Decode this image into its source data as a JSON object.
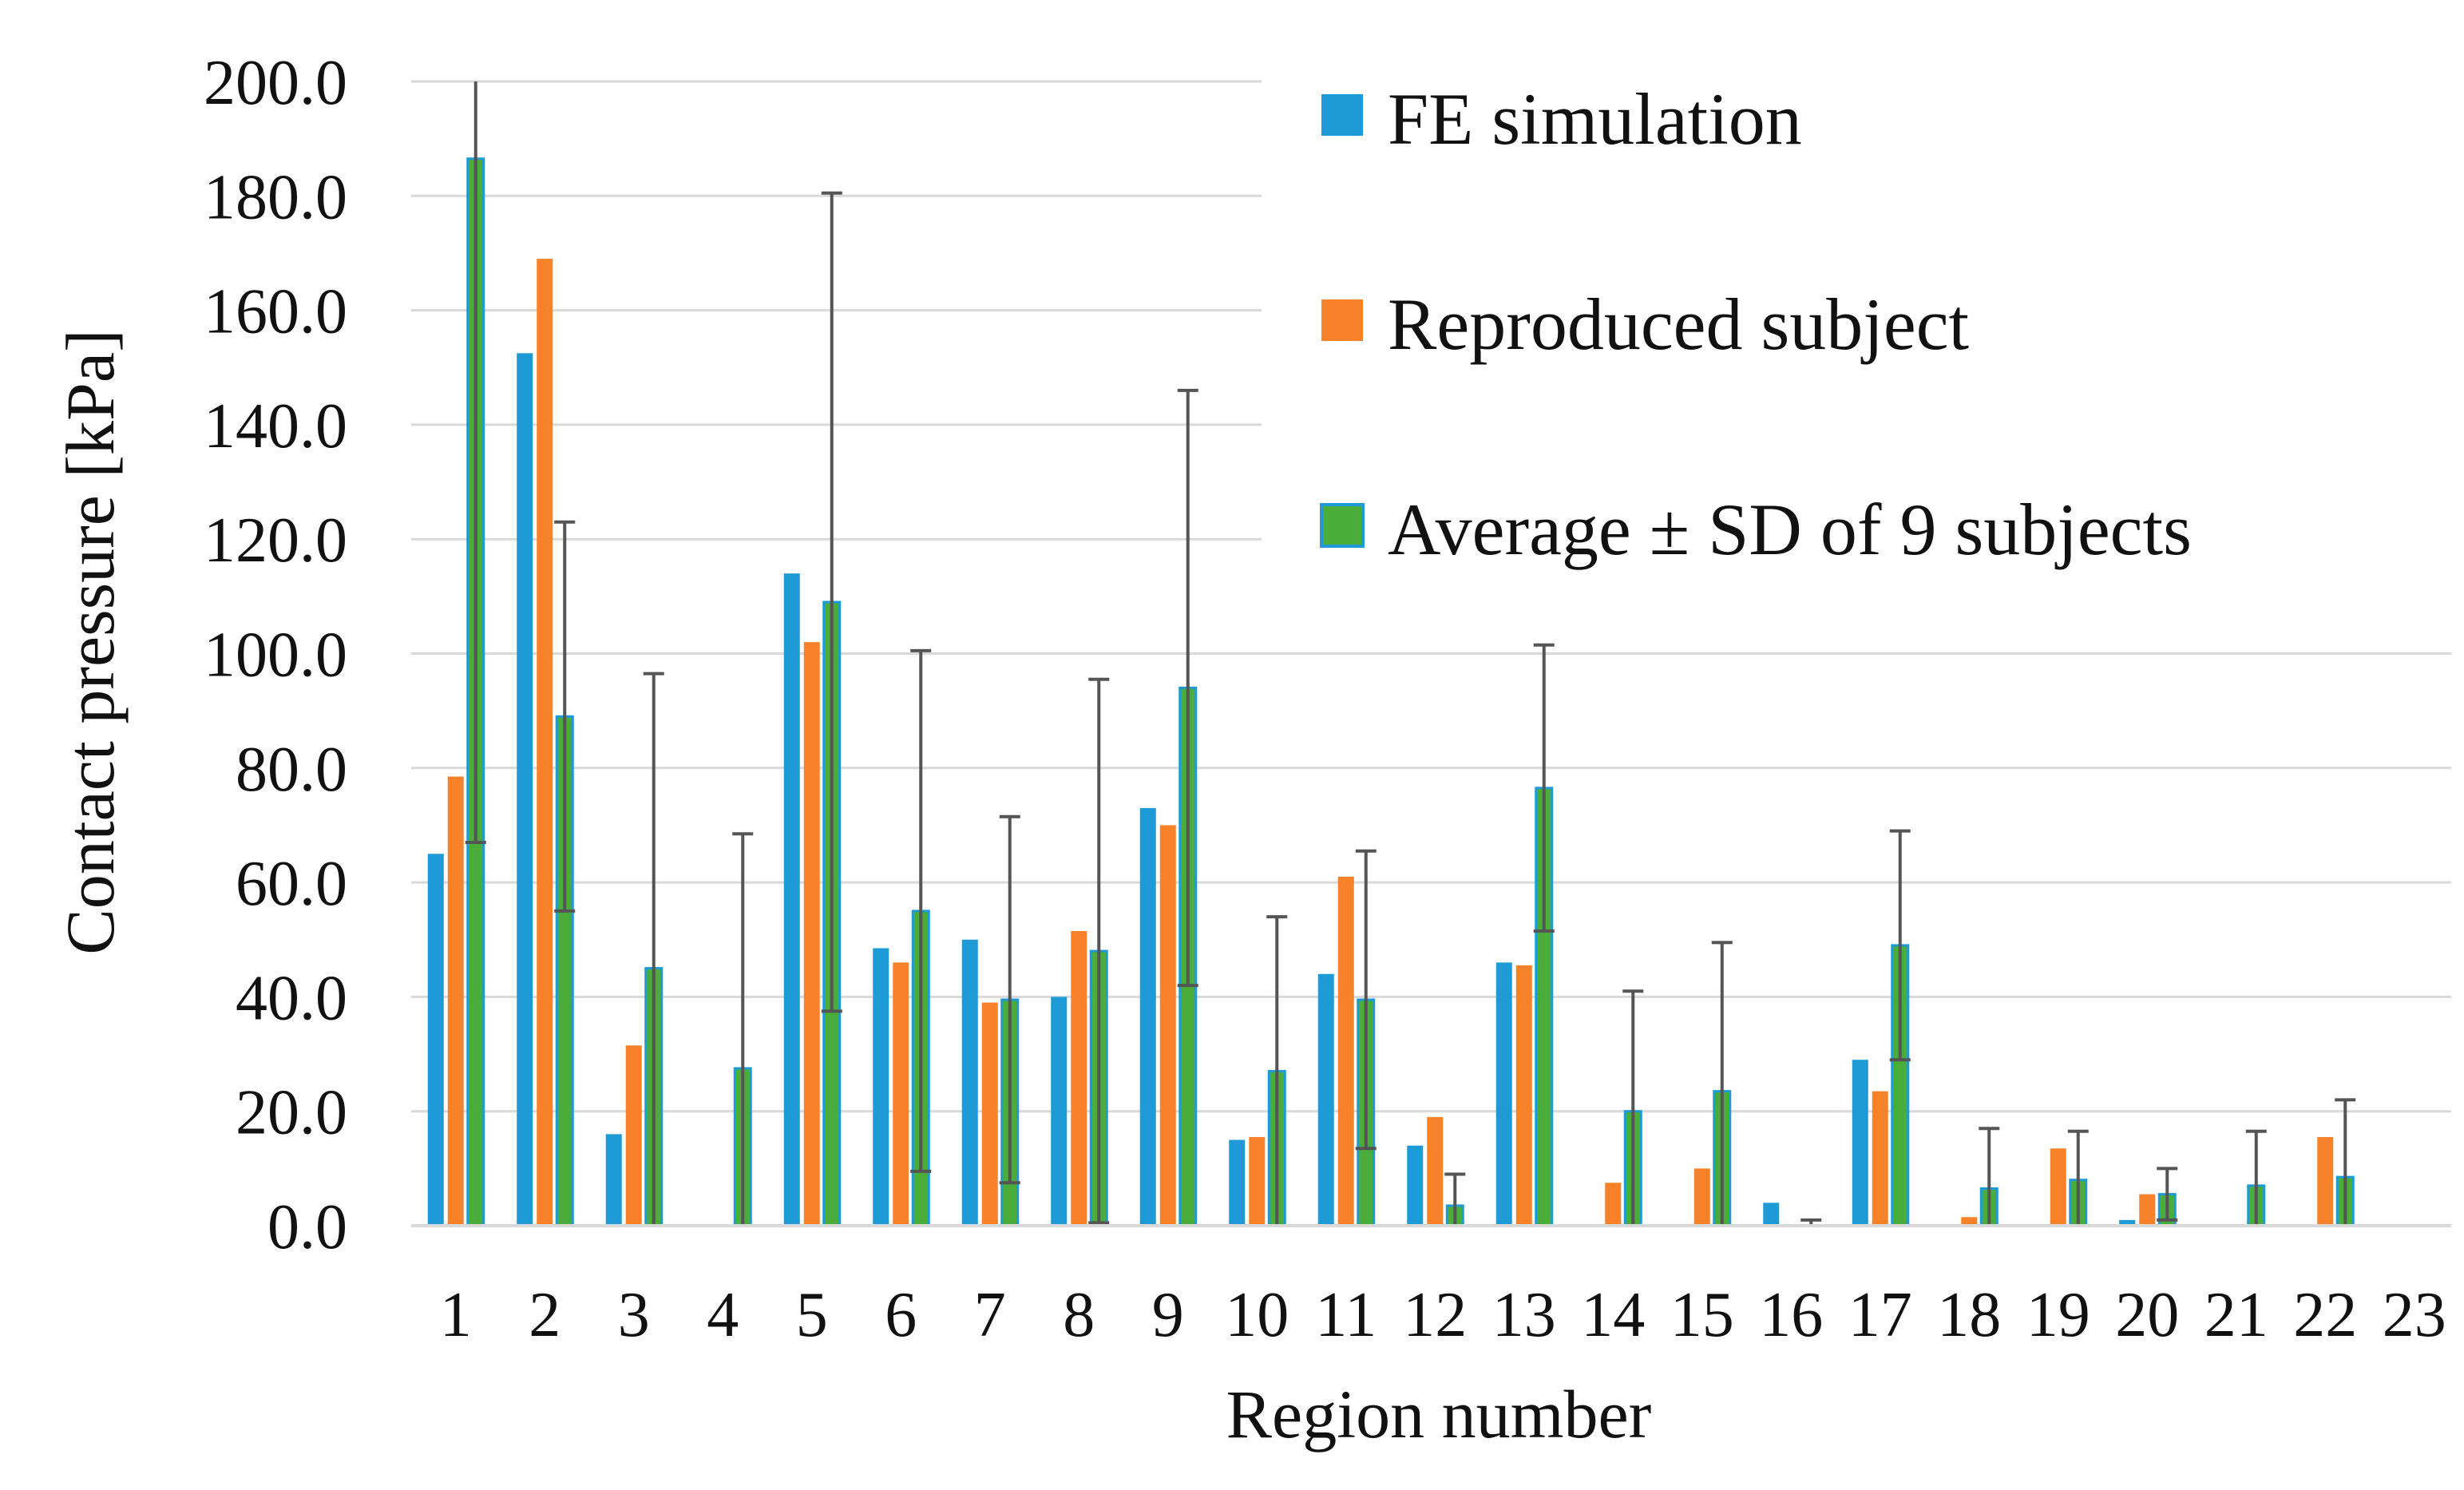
{
  "chart_data": {
    "type": "bar",
    "title": "",
    "xlabel": "Region number",
    "ylabel": "Contact pressure [kPa]",
    "ylim": [
      0,
      200
    ],
    "y_ticks": [
      "0.0",
      "20.0",
      "40.0",
      "60.0",
      "80.0",
      "100.0",
      "120.0",
      "140.0",
      "160.0",
      "180.0",
      "200.0"
    ],
    "grid": true,
    "legend_position": "top-right",
    "categories": [
      "1",
      "2",
      "3",
      "4",
      "5",
      "6",
      "7",
      "8",
      "9",
      "10",
      "11",
      "12",
      "13",
      "14",
      "15",
      "16",
      "17",
      "18",
      "19",
      "20",
      "21",
      "22",
      "23"
    ],
    "series": [
      {
        "name": "FE simulation",
        "color": "#1e9bd7",
        "values": [
          65,
          152.5,
          16,
          0,
          114,
          48.5,
          50,
          40,
          73,
          15,
          44,
          14,
          46,
          0,
          0,
          4,
          29,
          0,
          0,
          1,
          0,
          0,
          0
        ]
      },
      {
        "name": "Reproduced subject",
        "color": "#f7822a",
        "values": [
          78.5,
          169,
          31.5,
          0,
          102,
          46,
          39,
          51.5,
          70,
          15.5,
          61,
          19,
          45.5,
          7.5,
          10,
          0,
          23.5,
          1.5,
          13.5,
          5.5,
          0,
          15.5,
          0
        ]
      },
      {
        "name": "Average ± SD of 9 subjects",
        "color": "#4aad3a",
        "border_color": "#1e9bd7",
        "values": [
          186.5,
          89,
          45,
          27.5,
          109,
          55,
          39.5,
          48,
          94,
          27,
          39.5,
          3.5,
          76.5,
          20,
          23.5,
          0,
          49,
          6.5,
          8,
          5.5,
          7,
          8.5,
          0
        ],
        "sd": [
          119.5,
          34,
          51.5,
          41,
          71.5,
          45.5,
          32,
          47.5,
          52,
          27,
          26,
          5.5,
          25,
          21,
          26,
          1,
          20,
          10.5,
          8.5,
          4.5,
          9.5,
          13.5,
          0
        ]
      }
    ]
  }
}
